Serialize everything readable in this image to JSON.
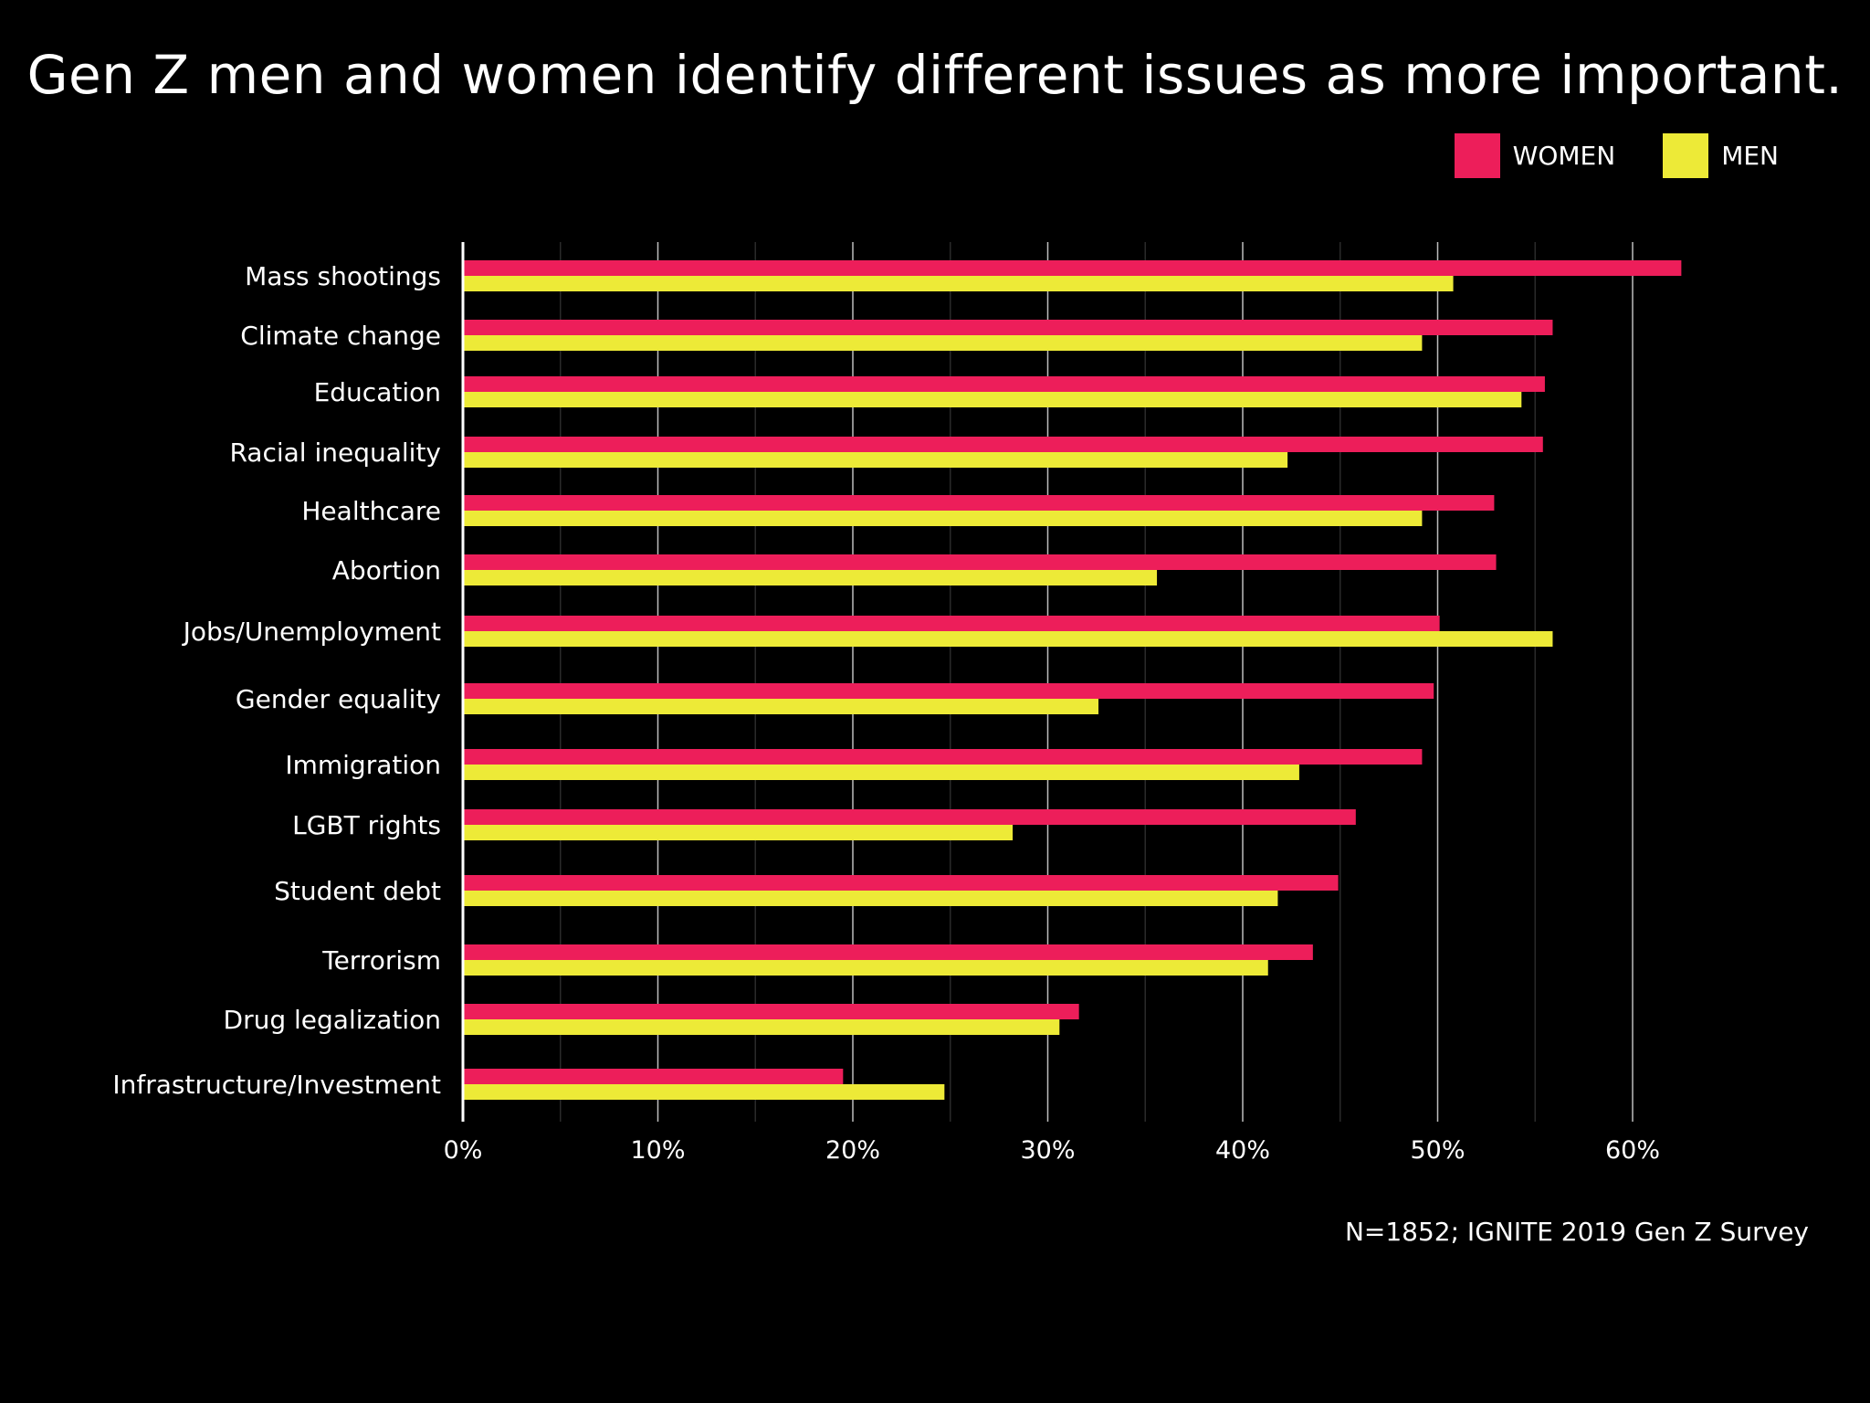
{
  "chart_data": {
    "type": "bar",
    "orientation": "horizontal",
    "title": "Gen Z men and women identify different issues as more important.",
    "source": "N=1852; IGNITE 2019 Gen Z Survey",
    "categories": [
      "Mass shootings",
      "Climate change",
      "Education",
      "Racial inequality",
      "Healthcare",
      "Abortion",
      "Jobs/Unemployment",
      "Gender equality",
      "Immigration",
      "LGBT rights",
      "Student debt",
      "Terrorism",
      "Drug legalization",
      "Infrastructure/Investment"
    ],
    "series": [
      {
        "name": "WOMEN",
        "color": "#ED1E5A",
        "values": [
          62.5,
          55.9,
          55.5,
          55.4,
          52.9,
          53.0,
          50.1,
          49.8,
          49.2,
          45.8,
          44.9,
          43.6,
          31.6,
          19.5
        ]
      },
      {
        "name": "MEN",
        "color": "#EDEA37",
        "values": [
          50.8,
          49.2,
          54.3,
          42.3,
          49.2,
          35.6,
          55.9,
          32.6,
          42.9,
          28.2,
          41.8,
          41.3,
          30.6,
          24.7
        ]
      }
    ],
    "xlim": [
      0,
      65
    ],
    "xticks": [
      "0%",
      "10%",
      "20%",
      "30%",
      "40%",
      "50%",
      "60%"
    ],
    "xtick_values": [
      0,
      10,
      20,
      30,
      40,
      50,
      60
    ],
    "minor_grid_values": [
      5,
      15,
      25,
      35,
      45,
      55
    ],
    "legend_position": "top-right",
    "grid": true
  }
}
